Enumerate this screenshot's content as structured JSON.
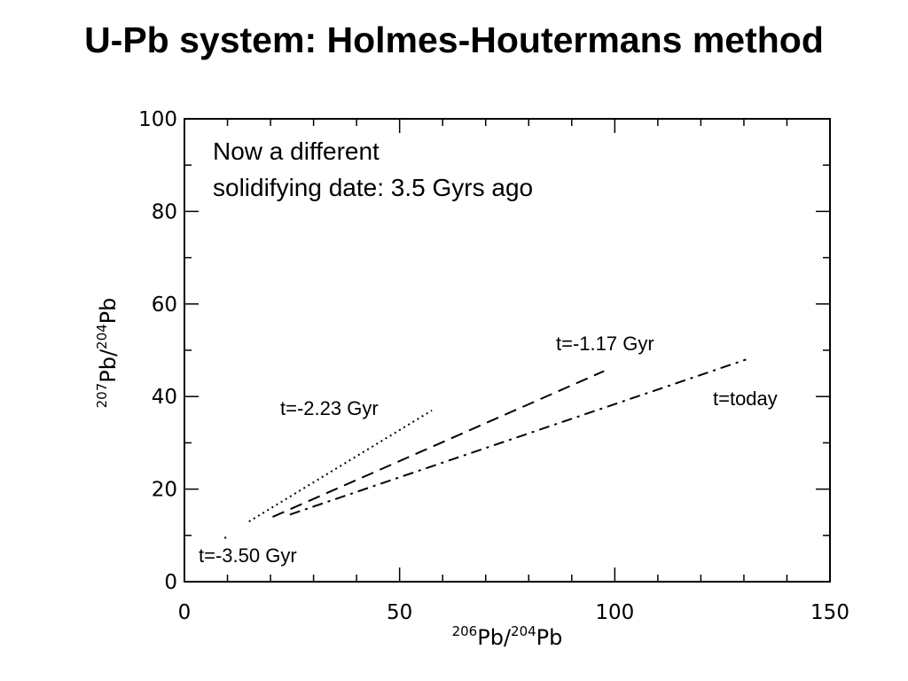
{
  "slide": {
    "title": "U-Pb system: Holmes-Houtermans method"
  },
  "chart_data": {
    "type": "line",
    "title": "",
    "xlabel": {
      "pre": "206",
      "mid": "Pb/",
      "sup": "204",
      "post": "Pb"
    },
    "ylabel": {
      "pre": "207",
      "mid": "Pb/",
      "sup": "204",
      "post": "Pb"
    },
    "xlim": [
      0,
      150
    ],
    "ylim": [
      0,
      100
    ],
    "xticks": [
      0,
      50,
      100,
      150
    ],
    "yticks": [
      0,
      20,
      40,
      60,
      80,
      100
    ],
    "grid": false,
    "note_lines": [
      "Now a different",
      "solidifying date: 3.5 Gyrs ago"
    ],
    "series": [
      {
        "label": "t=-2.23 Gyr",
        "style": "dotted",
        "x": [
          15,
          57.5
        ],
        "y": [
          13,
          37
        ]
      },
      {
        "label": "t=-1.17 Gyr",
        "style": "dashed",
        "x": [
          20.5,
          97.5
        ],
        "y": [
          14,
          45.5
        ]
      },
      {
        "label": "t=today",
        "style": "dashdot",
        "x": [
          24.5,
          130.5
        ],
        "y": [
          14.5,
          48
        ]
      }
    ],
    "start_point": {
      "label": "t=-3.50 Gyr",
      "x": 9.5,
      "y": 9.5
    }
  }
}
